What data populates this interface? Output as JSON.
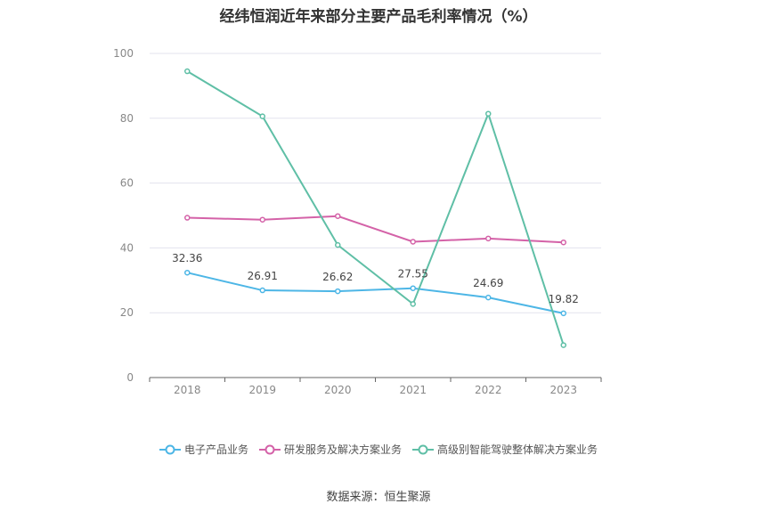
{
  "chart_data": {
    "type": "line",
    "title": "经纬恒润近年来部分主要产品毛利率情况（%）",
    "categories": [
      "2018",
      "2019",
      "2020",
      "2021",
      "2022",
      "2023"
    ],
    "ylim": [
      0,
      100
    ],
    "yticks": [
      0,
      20,
      40,
      60,
      80,
      100
    ],
    "grid": true,
    "legend_position": "bottom",
    "series": [
      {
        "name": "电子产品业务",
        "color": "#4db6e6",
        "values": [
          32.36,
          26.91,
          26.62,
          27.55,
          24.69,
          19.82
        ],
        "labels": [
          "32.36",
          "26.91",
          "26.62",
          "27.55",
          "24.69",
          "19.82"
        ]
      },
      {
        "name": "研发服务及解决方案业务",
        "color": "#d462a8",
        "values": [
          49.3,
          48.7,
          49.8,
          41.9,
          42.9,
          41.7
        ]
      },
      {
        "name": "高级别智能驾驶整体解决方案业务",
        "color": "#5fbfa6",
        "values": [
          94.5,
          80.6,
          40.9,
          22.7,
          81.4,
          10.0
        ]
      }
    ]
  },
  "source": "数据来源：恒生聚源"
}
